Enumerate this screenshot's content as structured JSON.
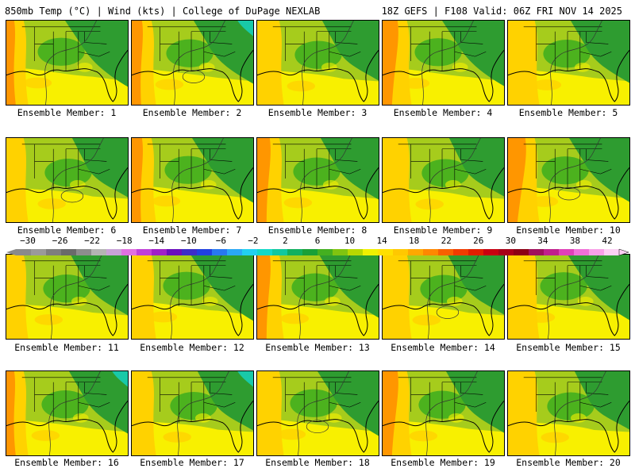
{
  "header": {
    "left": "850mb Temp (°C) | Wind (kts) | College of DuPage NEXLAB",
    "right": "18Z GEFS | F108 Valid: 06Z FRI NOV 14 2025"
  },
  "members": [
    "Ensemble Member: 1",
    "Ensemble Member: 2",
    "Ensemble Member: 3",
    "Ensemble Member: 4",
    "Ensemble Member: 5",
    "Ensemble Member: 6",
    "Ensemble Member: 7",
    "Ensemble Member: 8",
    "Ensemble Member: 9",
    "Ensemble Member: 10",
    "Ensemble Member: 11",
    "Ensemble Member: 12",
    "Ensemble Member: 13",
    "Ensemble Member: 14",
    "Ensemble Member: 15",
    "Ensemble Member: 16",
    "Ensemble Member: 17",
    "Ensemble Member: 18",
    "Ensemble Member: 19",
    "Ensemble Member: 20"
  ],
  "colorbar": {
    "ticks": [
      "−30",
      "−26",
      "−22",
      "−18",
      "−14",
      "−10",
      "−6",
      "−2",
      "2",
      "6",
      "10",
      "14",
      "18",
      "22",
      "26",
      "30",
      "34",
      "38",
      "42"
    ],
    "colors": [
      "#8a8a8a",
      "#9a9a9a",
      "#7e7e7e",
      "#6a6a6a",
      "#8d8d8d",
      "#b4b4b4",
      "#c8a2d8",
      "#e070e0",
      "#c040d8",
      "#a020c8",
      "#6a0dbd",
      "#3c2dc8",
      "#2040e0",
      "#2878f0",
      "#2aa8f5",
      "#22d0f0",
      "#14d8c8",
      "#10c8a0",
      "#10b060",
      "#18a038",
      "#44b020",
      "#80c410",
      "#b8d800",
      "#f0f000",
      "#ffe000",
      "#ffc800",
      "#ffa800",
      "#ff8800",
      "#f86000",
      "#f03c00",
      "#e01e00",
      "#c80010",
      "#a80018",
      "#8c0014",
      "#a0105c",
      "#c0208c",
      "#e040b8",
      "#f070d8",
      "#f8a0e8",
      "#fcd0f4"
    ]
  },
  "fields": {
    "colors": {
      "dark_green": "#2e9c30",
      "green": "#4cb21e",
      "yellow_green": "#a6cc1c",
      "yellow": "#f8f000",
      "gold": "#ffd200",
      "orange": "#ff9600",
      "teal": "#19c9a8"
    }
  }
}
